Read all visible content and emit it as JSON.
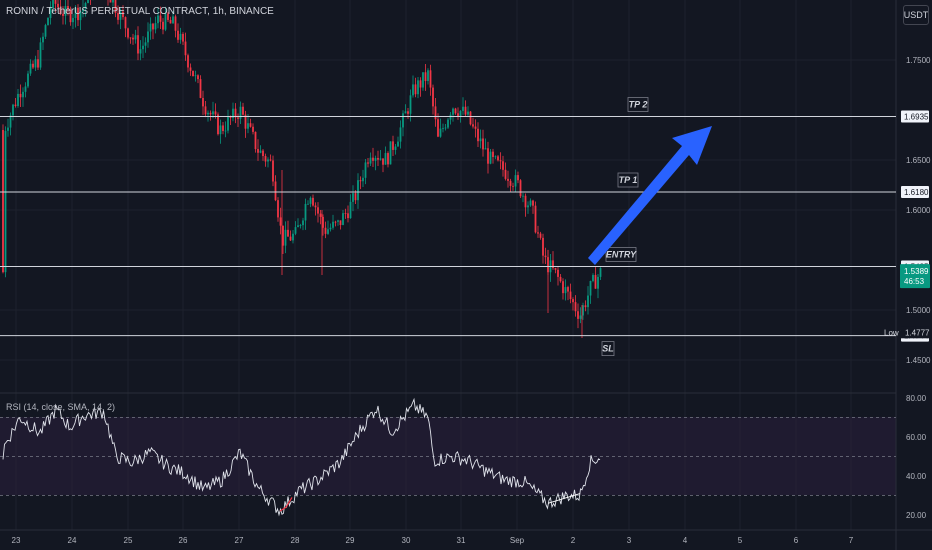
{
  "header": {
    "symbol": "RONIN / TetherUS PERPETUAL CONTRACT, 1h, BINANCE",
    "currency": "USDT"
  },
  "rsi": {
    "label": "RSI (14, close, SMA, 14, 2)",
    "ticks": [
      "80.00",
      "60.00",
      "40.00",
      "20.00"
    ]
  },
  "chart_data": {
    "type": "candlestick",
    "price_axis": {
      "ticks": [
        {
          "v": 1.75,
          "label": "1.7500"
        },
        {
          "v": 1.65,
          "label": "1.6500"
        },
        {
          "v": 1.6,
          "label": "1.6000"
        },
        {
          "v": 1.5,
          "label": "1.5000"
        },
        {
          "v": 1.45,
          "label": "1.4500"
        }
      ]
    },
    "x_labels": [
      "23",
      "24",
      "25",
      "26",
      "27",
      "28",
      "29",
      "30",
      "31",
      "Sep",
      "2",
      "3",
      "4",
      "5",
      "6",
      "7"
    ],
    "levels": [
      {
        "name": "TP 2",
        "value": 1.6935,
        "label": "1.6935"
      },
      {
        "name": "TP 1",
        "value": 1.618,
        "label": "1.6180"
      },
      {
        "name": "ENTRY",
        "value": 1.5435,
        "label": "1.5435"
      },
      {
        "name": "SL",
        "value": 1.4744,
        "label": "1.4744"
      }
    ],
    "current_price": {
      "value": 1.5389,
      "label": "1.5389",
      "countdown": "46:53",
      "color": "#089981"
    },
    "low": {
      "label": "Low",
      "value": 1.4777,
      "text": "1.4777"
    },
    "colors": {
      "up": "#089981",
      "down": "#f23645",
      "arrow": "#2962ff",
      "rsi_line": "#e0e3eb",
      "rsi_band": "#2a1f3d"
    },
    "anchors": [
      {
        "x": 4,
        "v": 1.68
      },
      {
        "x": 20,
        "v": 1.72
      },
      {
        "x": 38,
        "v": 1.75
      },
      {
        "x": 52,
        "v": 1.81
      },
      {
        "x": 66,
        "v": 1.795
      },
      {
        "x": 82,
        "v": 1.8
      },
      {
        "x": 96,
        "v": 1.83
      },
      {
        "x": 110,
        "v": 1.815
      },
      {
        "x": 125,
        "v": 1.785
      },
      {
        "x": 140,
        "v": 1.76
      },
      {
        "x": 158,
        "v": 1.79
      },
      {
        "x": 174,
        "v": 1.785
      },
      {
        "x": 190,
        "v": 1.745
      },
      {
        "x": 205,
        "v": 1.705
      },
      {
        "x": 220,
        "v": 1.68
      },
      {
        "x": 240,
        "v": 1.7
      },
      {
        "x": 258,
        "v": 1.66
      },
      {
        "x": 272,
        "v": 1.645
      },
      {
        "x": 282,
        "v": 1.57
      },
      {
        "x": 296,
        "v": 1.575
      },
      {
        "x": 310,
        "v": 1.62
      },
      {
        "x": 324,
        "v": 1.58
      },
      {
        "x": 338,
        "v": 1.585
      },
      {
        "x": 354,
        "v": 1.61
      },
      {
        "x": 370,
        "v": 1.66
      },
      {
        "x": 386,
        "v": 1.65
      },
      {
        "x": 400,
        "v": 1.68
      },
      {
        "x": 414,
        "v": 1.72
      },
      {
        "x": 428,
        "v": 1.735
      },
      {
        "x": 438,
        "v": 1.67
      },
      {
        "x": 452,
        "v": 1.705
      },
      {
        "x": 466,
        "v": 1.695
      },
      {
        "x": 476,
        "v": 1.675
      },
      {
        "x": 490,
        "v": 1.65
      },
      {
        "x": 504,
        "v": 1.64
      },
      {
        "x": 518,
        "v": 1.625
      },
      {
        "x": 532,
        "v": 1.6
      },
      {
        "x": 544,
        "v": 1.55
      },
      {
        "x": 556,
        "v": 1.535
      },
      {
        "x": 568,
        "v": 1.515
      },
      {
        "x": 580,
        "v": 1.495
      },
      {
        "x": 592,
        "v": 1.525
      },
      {
        "x": 601,
        "v": 1.538
      }
    ],
    "rsi_anchors": [
      {
        "x": 4,
        "v": 55
      },
      {
        "x": 20,
        "v": 70
      },
      {
        "x": 40,
        "v": 62
      },
      {
        "x": 56,
        "v": 74
      },
      {
        "x": 70,
        "v": 65
      },
      {
        "x": 84,
        "v": 71
      },
      {
        "x": 104,
        "v": 73
      },
      {
        "x": 116,
        "v": 50
      },
      {
        "x": 132,
        "v": 47
      },
      {
        "x": 150,
        "v": 52
      },
      {
        "x": 168,
        "v": 45
      },
      {
        "x": 186,
        "v": 41
      },
      {
        "x": 204,
        "v": 33
      },
      {
        "x": 222,
        "v": 38
      },
      {
        "x": 240,
        "v": 52
      },
      {
        "x": 258,
        "v": 34
      },
      {
        "x": 280,
        "v": 22
      },
      {
        "x": 298,
        "v": 32
      },
      {
        "x": 318,
        "v": 38
      },
      {
        "x": 340,
        "v": 47
      },
      {
        "x": 358,
        "v": 62
      },
      {
        "x": 376,
        "v": 75
      },
      {
        "x": 392,
        "v": 63
      },
      {
        "x": 414,
        "v": 76
      },
      {
        "x": 428,
        "v": 70
      },
      {
        "x": 434,
        "v": 48
      },
      {
        "x": 452,
        "v": 50
      },
      {
        "x": 468,
        "v": 48
      },
      {
        "x": 488,
        "v": 42
      },
      {
        "x": 504,
        "v": 38
      },
      {
        "x": 524,
        "v": 37
      },
      {
        "x": 548,
        "v": 26
      },
      {
        "x": 566,
        "v": 30
      },
      {
        "x": 580,
        "v": 30
      },
      {
        "x": 590,
        "v": 47
      },
      {
        "x": 601,
        "v": 50
      }
    ]
  }
}
